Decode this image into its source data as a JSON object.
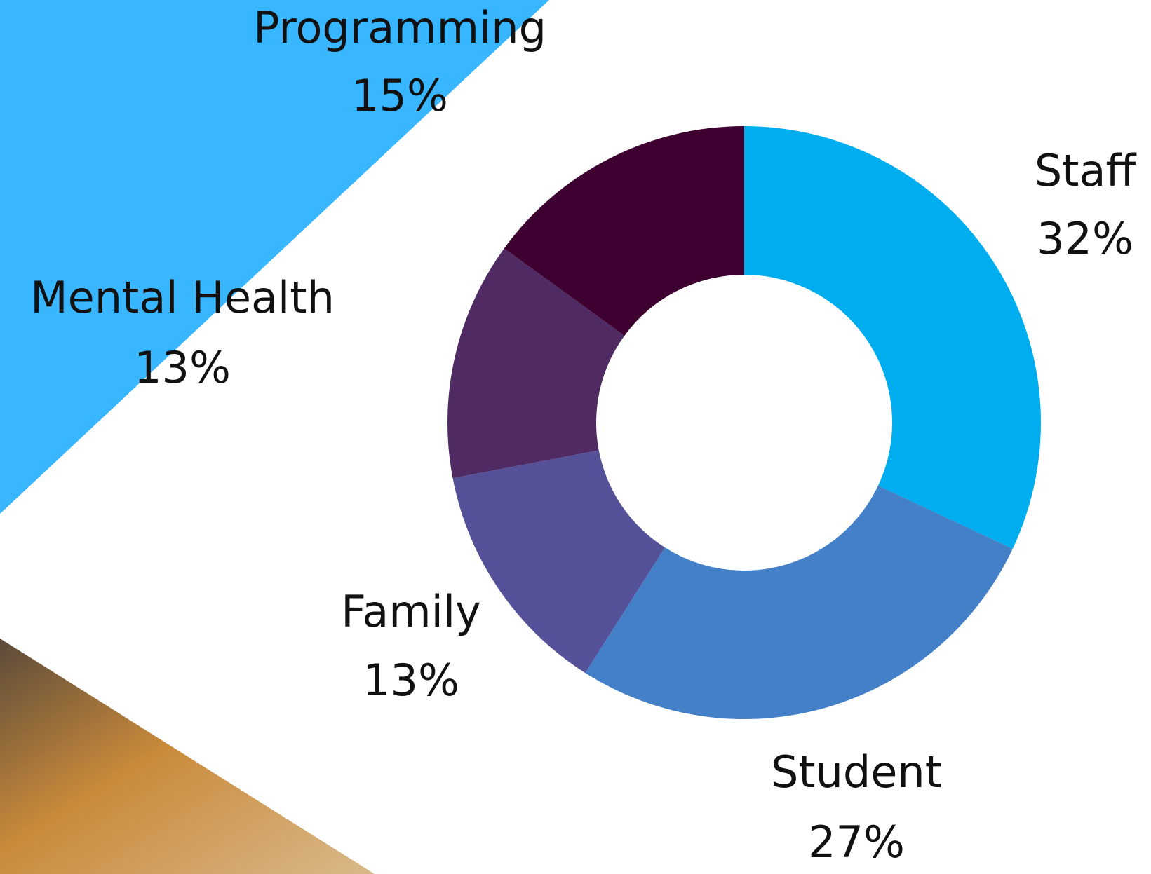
{
  "chart_data": {
    "type": "donut",
    "categories": [
      "Staff",
      "Student",
      "Family",
      "Mental Health",
      "Programming"
    ],
    "values": [
      32,
      27,
      13,
      13,
      15
    ],
    "value_labels": [
      "32%",
      "27%",
      "13%",
      "13%",
      "15%"
    ],
    "colors": [
      "#00adef",
      "#4380c8",
      "#545199",
      "#4f2a63",
      "#3e0030"
    ]
  }
}
